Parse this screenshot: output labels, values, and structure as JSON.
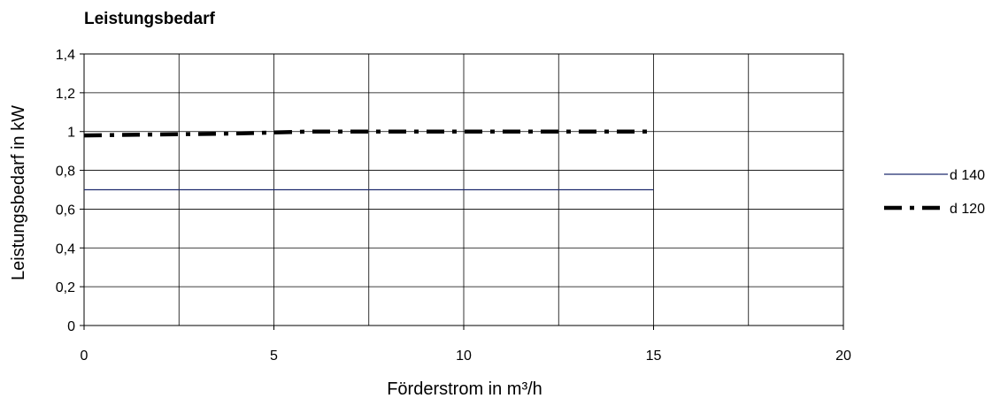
{
  "chart_data": {
    "type": "line",
    "title": "Leistungsbedarf",
    "xlabel": "Förderstrom in m³/h",
    "ylabel": "Leistungsbedarf in kW",
    "xlim": [
      0,
      20
    ],
    "ylim": [
      0,
      1.4
    ],
    "x_ticks": [
      "0",
      "5",
      "10",
      "15",
      "20"
    ],
    "x_grid": [
      0,
      2.5,
      5,
      7.5,
      10,
      12.5,
      15,
      17.5,
      20
    ],
    "y_ticks": [
      "0",
      "0,2",
      "0,4",
      "0,6",
      "0,8",
      "1",
      "1,2",
      "1,4"
    ],
    "grid": true,
    "legend_position": "right",
    "series": [
      {
        "name": "d 140",
        "color": "#1f2a6e",
        "style": "solid",
        "x": [
          0,
          15
        ],
        "y": [
          0.7,
          0.7
        ]
      },
      {
        "name": "d 120",
        "color": "#000000",
        "style": "dash-dot",
        "x": [
          0,
          2,
          4,
          6,
          8,
          10,
          12,
          15
        ],
        "y": [
          0.98,
          0.985,
          0.99,
          1.0,
          1.0,
          1.0,
          1.0,
          1.0
        ]
      }
    ]
  }
}
